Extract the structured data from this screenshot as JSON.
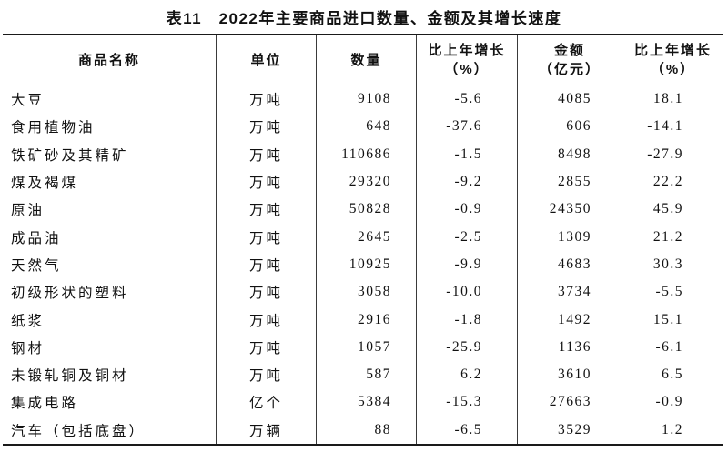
{
  "page": {
    "background_color": "#ffffff",
    "text_color": "#111111",
    "line_color": "#1a1a1a"
  },
  "title": "表11　2022年主要商品进口数量、金额及其增长速度",
  "table": {
    "header": {
      "product": "商品名称",
      "unit": "单位",
      "quantity": "数量",
      "quantity_growth_line1": "比上年增长",
      "quantity_growth_line2": "（%）",
      "amount_line1": "金额",
      "amount_line2": "（亿元）",
      "amount_growth_line1": "比上年增长",
      "amount_growth_line2": "（%）"
    },
    "rows": [
      {
        "name": "大豆",
        "unit": "万吨",
        "quantity": "9108",
        "quantity_growth": "-5.6",
        "amount": "4085",
        "amount_growth": "18.1"
      },
      {
        "name": "食用植物油",
        "unit": "万吨",
        "quantity": "648",
        "quantity_growth": "-37.6",
        "amount": "606",
        "amount_growth": "-14.1"
      },
      {
        "name": "铁矿砂及其精矿",
        "unit": "万吨",
        "quantity": "110686",
        "quantity_growth": "-1.5",
        "amount": "8498",
        "amount_growth": "-27.9"
      },
      {
        "name": "煤及褐煤",
        "unit": "万吨",
        "quantity": "29320",
        "quantity_growth": "-9.2",
        "amount": "2855",
        "amount_growth": "22.2"
      },
      {
        "name": "原油",
        "unit": "万吨",
        "quantity": "50828",
        "quantity_growth": "-0.9",
        "amount": "24350",
        "amount_growth": "45.9"
      },
      {
        "name": "成品油",
        "unit": "万吨",
        "quantity": "2645",
        "quantity_growth": "-2.5",
        "amount": "1309",
        "amount_growth": "21.2"
      },
      {
        "name": "天然气",
        "unit": "万吨",
        "quantity": "10925",
        "quantity_growth": "-9.9",
        "amount": "4683",
        "amount_growth": "30.3"
      },
      {
        "name": "初级形状的塑料",
        "unit": "万吨",
        "quantity": "3058",
        "quantity_growth": "-10.0",
        "amount": "3734",
        "amount_growth": "-5.5"
      },
      {
        "name": "纸浆",
        "unit": "万吨",
        "quantity": "2916",
        "quantity_growth": "-1.8",
        "amount": "1492",
        "amount_growth": "15.1"
      },
      {
        "name": "钢材",
        "unit": "万吨",
        "quantity": "1057",
        "quantity_growth": "-25.9",
        "amount": "1136",
        "amount_growth": "-6.1"
      },
      {
        "name": "未锻轧铜及铜材",
        "unit": "万吨",
        "quantity": "587",
        "quantity_growth": "6.2",
        "amount": "3610",
        "amount_growth": "6.5"
      },
      {
        "name": "集成电路",
        "unit": "亿个",
        "quantity": "5384",
        "quantity_growth": "-15.3",
        "amount": "27663",
        "amount_growth": "-0.9"
      },
      {
        "name": "汽车（包括底盘）",
        "unit": "万辆",
        "quantity": "88",
        "quantity_growth": "-6.5",
        "amount": "3529",
        "amount_growth": "1.2"
      }
    ]
  }
}
